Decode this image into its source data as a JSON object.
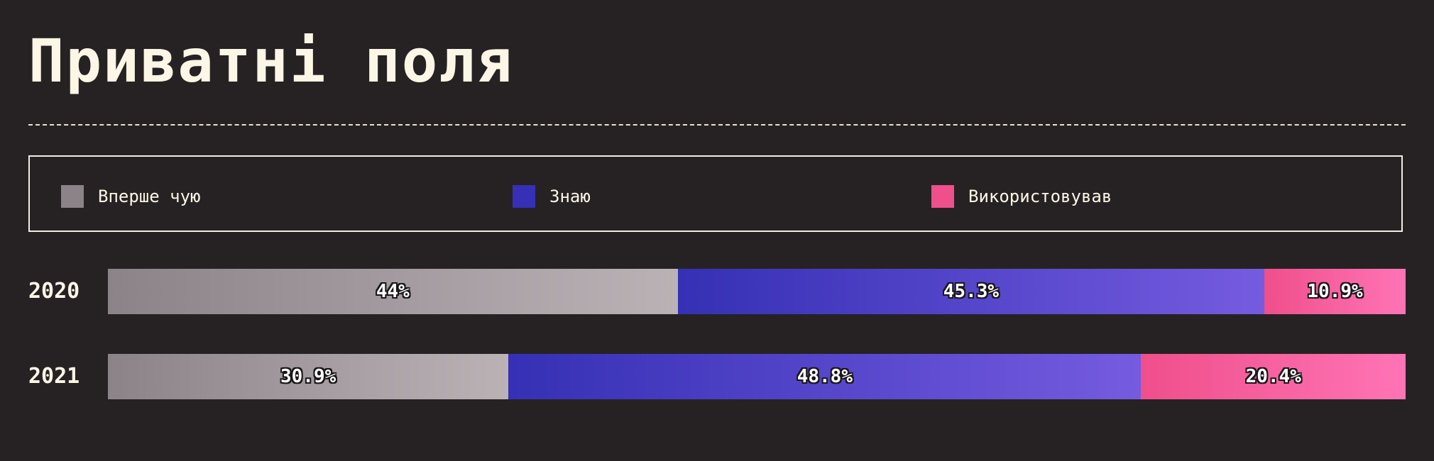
{
  "title": "Приватні поля",
  "colors": {
    "background": "#262223",
    "text": "#fbf6e6",
    "first_heard": "#8b8388",
    "know": "#3530b5",
    "used": "#ef4f8b"
  },
  "legend": [
    {
      "label": "Вперше чую",
      "color": "#8b8388"
    },
    {
      "label": "Знаю",
      "color": "#3530b5"
    },
    {
      "label": "Використовував",
      "color": "#ef4f8b"
    }
  ],
  "chart_data": {
    "type": "bar",
    "orientation": "horizontal",
    "stacked": true,
    "categories": [
      "2020",
      "2021"
    ],
    "series": [
      {
        "name": "Вперше чую",
        "values": [
          44,
          30.9
        ],
        "labels": [
          "44%",
          "30.9%"
        ]
      },
      {
        "name": "Знаю",
        "values": [
          45.3,
          48.8
        ],
        "labels": [
          "45.3%",
          "48.8%"
        ]
      },
      {
        "name": "Використовував",
        "values": [
          10.9,
          20.4
        ],
        "labels": [
          "10.9%",
          "20.4%"
        ]
      }
    ],
    "xlim": [
      0,
      100
    ],
    "unit": "%",
    "legend_position": "top",
    "grid": false
  }
}
